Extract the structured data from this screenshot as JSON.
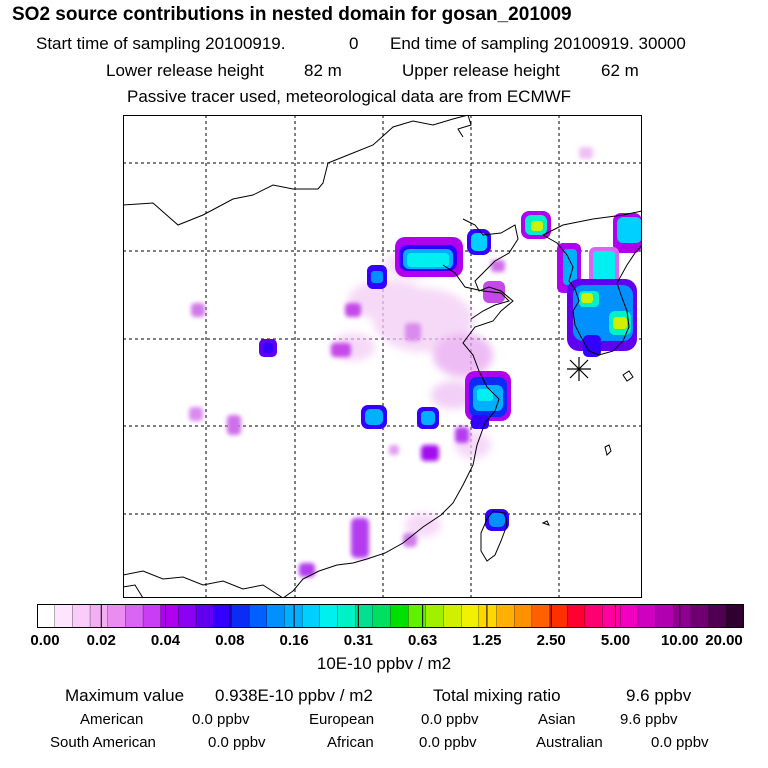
{
  "title": "SO2 source contributions in nested domain for gosan_201009",
  "header": {
    "start_label": "Start time of sampling 20100919.",
    "start_value": "0",
    "end_label": "End time of sampling 20100919. 30000",
    "lower_label": "Lower release height",
    "lower_value": "82 m",
    "upper_label": "Upper release height",
    "upper_value": "62 m",
    "tracer_note": "Passive tracer used, meteorological data are from ECMWF"
  },
  "colorbar": {
    "colors": [
      "#ffffff",
      "#fde6fd",
      "#f9ccf9",
      "#f2b0f2",
      "#ea8cf0",
      "#d966f3",
      "#c93ef5",
      "#b000f0",
      "#8a00f0",
      "#6000f0",
      "#3300ff",
      "#0a2cf5",
      "#0060ff",
      "#0090ff",
      "#00b0ff",
      "#00d0ff",
      "#00f0f0",
      "#00f0c8",
      "#00e090",
      "#00e060",
      "#00e000",
      "#60f000",
      "#a0f000",
      "#d0f000",
      "#f0f000",
      "#ffd800",
      "#ffb000",
      "#ff9000",
      "#ff6000",
      "#ff3000",
      "#ff0030",
      "#ff0070",
      "#ff00a0",
      "#f000c0",
      "#d000c0",
      "#b000b0",
      "#900090",
      "#700070",
      "#500050",
      "#300030"
    ],
    "ticks": [
      "0.00",
      "0.02",
      "0.04",
      "0.08",
      "0.16",
      "0.31",
      "0.63",
      "1.25",
      "2.50",
      "5.00",
      "10.00",
      "20.00"
    ],
    "units": "10E-10 ppbv / m2"
  },
  "summary": {
    "max_label": "Maximum value",
    "max_value": "0.938E-10 ppbv / m2",
    "total_label": "Total mixing ratio",
    "total_value": "9.6 ppbv",
    "regions": [
      {
        "name": "American",
        "value": "0.0 ppbv"
      },
      {
        "name": "European",
        "value": "0.0 ppbv"
      },
      {
        "name": "Asian",
        "value": "9.6 ppbv"
      },
      {
        "name": "South American",
        "value": "0.0 ppbv"
      },
      {
        "name": "African",
        "value": "0.0 ppbv"
      },
      {
        "name": "Australian",
        "value": "0.0 ppbv"
      }
    ]
  },
  "map": {
    "receptor": "gosan",
    "plumes": [
      {
        "name": "plume-north-china-plain",
        "color": "#e6a3f2"
      },
      {
        "name": "plume-beijing-tianjin",
        "color": "#00f0f0"
      },
      {
        "name": "plume-korea",
        "color": "#00d0ff"
      },
      {
        "name": "plume-shanghai",
        "color": "#00b0ff"
      },
      {
        "name": "plume-taiwan",
        "color": "#0060ff"
      }
    ]
  }
}
